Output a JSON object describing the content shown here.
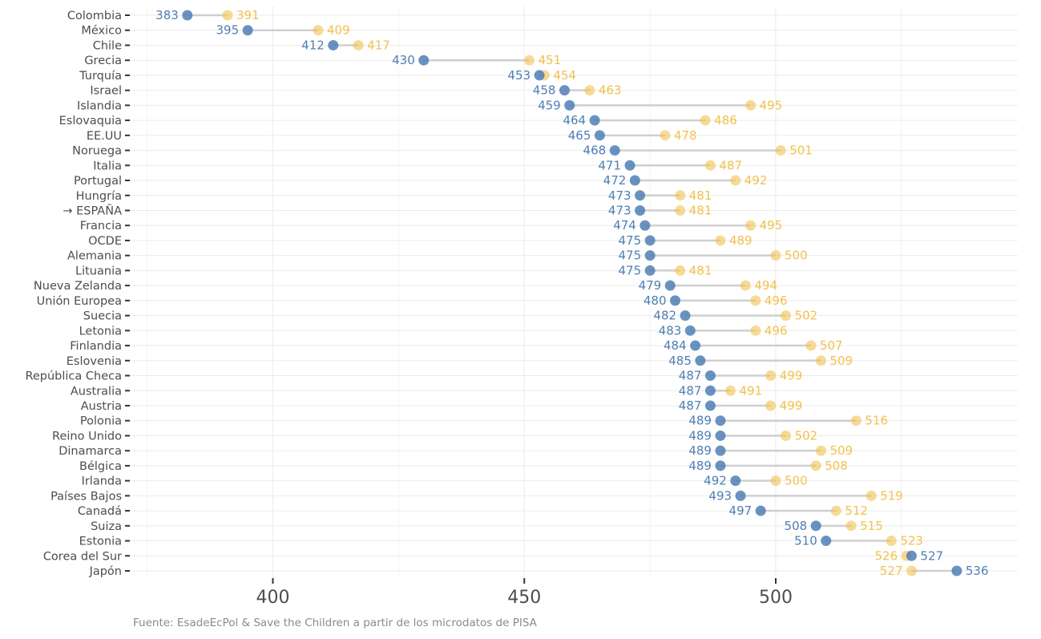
{
  "chart_data": {
    "type": "dumbbell",
    "title": "",
    "xlabel": "",
    "ylabel": "",
    "xlim": [
      375,
      546
    ],
    "x_ticks": [
      400,
      450,
      500
    ],
    "grid": true,
    "colors": {
      "series_a": "#4f7fb5",
      "series_b": "#f2c14e",
      "segment": "#cfcfcf"
    },
    "categories": [
      "Colombia",
      "México",
      "Chile",
      "Grecia",
      "Turquía",
      "Israel",
      "Islandia",
      "Eslovaquia",
      "EE.UU",
      "Noruega",
      "Italia",
      "Portugal",
      "Hungría",
      "→ ESPAÑA",
      "Francia",
      "OCDE",
      "Alemania",
      "Lituania",
      "Nueva Zelanda",
      "Unión Europea",
      "Suecia",
      "Letonia",
      "Finlandia",
      "Eslovenia",
      "República Checa",
      "Australia",
      "Austria",
      "Polonia",
      "Reino Unido",
      "Dinamarca",
      "Bélgica",
      "Irlanda",
      "Países Bajos",
      "Canadá",
      "Suiza",
      "Estonia",
      "Corea del Sur",
      "Japón"
    ],
    "series": [
      {
        "values": [
          383,
          395,
          412,
          430,
          453,
          458,
          459,
          464,
          465,
          468,
          471,
          472,
          473,
          473,
          474,
          475,
          475,
          475,
          479,
          480,
          482,
          483,
          484,
          485,
          487,
          487,
          487,
          489,
          489,
          489,
          489,
          492,
          493,
          497,
          508,
          510,
          527,
          536
        ]
      },
      {
        "values": [
          391,
          409,
          417,
          451,
          454,
          463,
          495,
          486,
          478,
          501,
          487,
          492,
          481,
          481,
          495,
          489,
          500,
          481,
          494,
          496,
          502,
          496,
          507,
          509,
          499,
          491,
          499,
          516,
          502,
          509,
          508,
          500,
          519,
          512,
          515,
          523,
          526,
          527
        ]
      }
    ],
    "caption": "Fuente: EsadeEcPol & Save the Children a partir de los microdatos de PISA"
  }
}
